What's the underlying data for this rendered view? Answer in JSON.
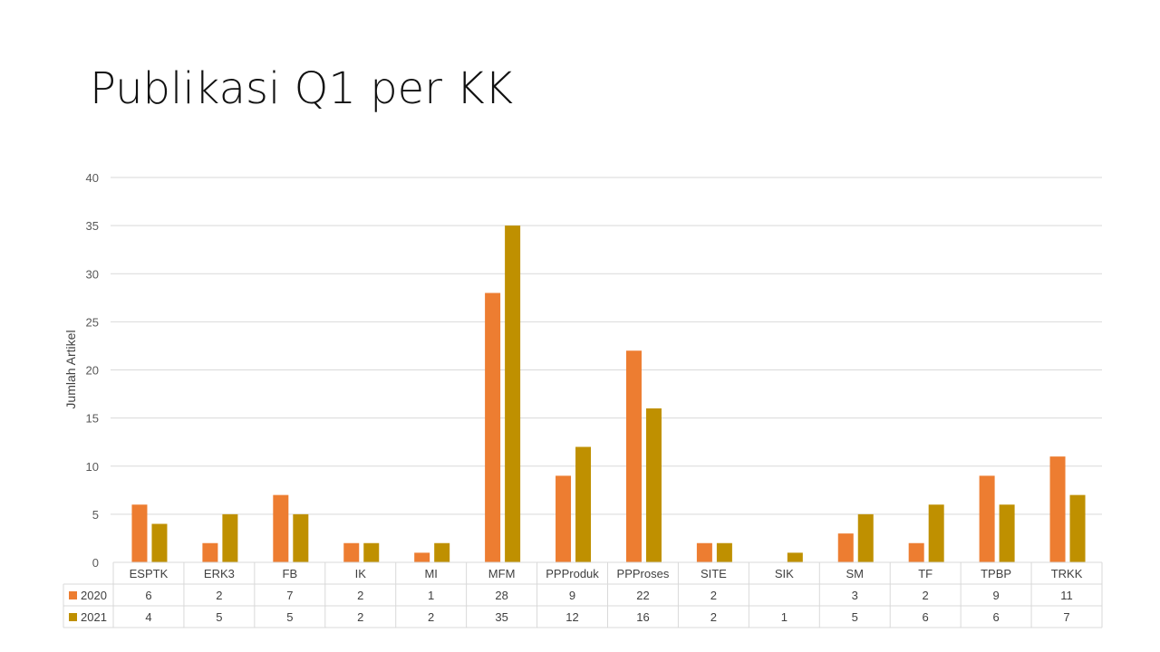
{
  "slide": {
    "title": "Publikasi Q1 per KK"
  },
  "chart_data": {
    "type": "bar",
    "title": "",
    "xlabel": "",
    "ylabel": "Jumlah Artikel",
    "ylim": [
      0,
      40
    ],
    "yticks": [
      0,
      5,
      10,
      15,
      20,
      25,
      30,
      35,
      40
    ],
    "grid": true,
    "legend": "data-table",
    "categories": [
      "ESPTK",
      "ERK3",
      "FB",
      "IK",
      "MI",
      "MFM",
      "PPProduk",
      "PPProses",
      "SITE",
      "SIK",
      "SM",
      "TF",
      "TPBP",
      "TRKK"
    ],
    "series": [
      {
        "name": "2020",
        "color": "#ED7D31",
        "values": [
          6,
          2,
          7,
          2,
          1,
          28,
          9,
          22,
          2,
          null,
          3,
          2,
          9,
          11
        ]
      },
      {
        "name": "2021",
        "color": "#BF9000",
        "values": [
          4,
          5,
          5,
          2,
          2,
          35,
          12,
          16,
          2,
          1,
          5,
          6,
          6,
          7
        ]
      }
    ]
  }
}
